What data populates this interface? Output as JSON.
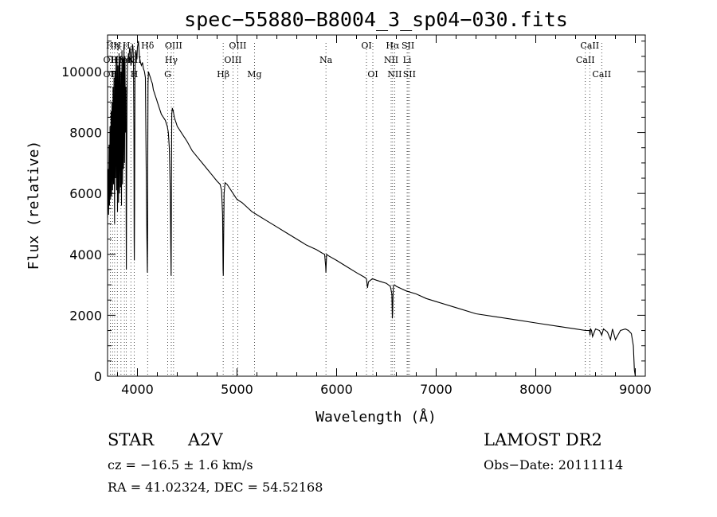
{
  "chart_data": {
    "type": "line",
    "title": "spec−55880−B8004_3_sp04−030.fits",
    "xlabel": "Wavelength (Å)",
    "ylabel": "Flux (relative)",
    "xlim": [
      3700,
      9100
    ],
    "ylim": [
      0,
      11200
    ],
    "xticks": [
      4000,
      5000,
      6000,
      7000,
      8000,
      9000
    ],
    "yticks": [
      0,
      2000,
      4000,
      6000,
      8000,
      10000
    ],
    "grid": false,
    "series": [
      {
        "x": [
          3700,
          3705,
          3710,
          3715,
          3720,
          3725,
          3730,
          3735,
          3740,
          3745,
          3750,
          3755,
          3760,
          3765,
          3770,
          3775,
          3780,
          3785,
          3790,
          3795,
          3800,
          3805,
          3810,
          3815,
          3820,
          3825,
          3830,
          3835,
          3840,
          3845,
          3850,
          3855,
          3860,
          3865,
          3870,
          3875,
          3880,
          3885,
          3887,
          3889,
          3891,
          3895,
          3900,
          3905,
          3910,
          3915,
          3920,
          3925,
          3930,
          3935,
          3940,
          3945,
          3950,
          3955,
          3960,
          3965,
          3967,
          3969,
          3971,
          3975,
          3980,
          3985,
          3990,
          3995,
          4000,
          4010,
          4020,
          4030,
          4040,
          4050,
          4060,
          4070,
          4080,
          4090,
          4095,
          4100,
          4102,
          4104,
          4106,
          4110,
          4120,
          4130,
          4140,
          4150,
          4160,
          4170,
          4180,
          4190,
          4200,
          4220,
          4240,
          4260,
          4280,
          4300,
          4310,
          4320,
          4330,
          4335,
          4338,
          4340,
          4342,
          4345,
          4350,
          4360,
          4370,
          4380,
          4390,
          4400,
          4420,
          4440,
          4460,
          4480,
          4500,
          4550,
          4600,
          4650,
          4700,
          4750,
          4800,
          4830,
          4845,
          4855,
          4860,
          4862,
          4865,
          4870,
          4880,
          4900,
          4950,
          5000,
          5050,
          5100,
          5150,
          5200,
          5300,
          5400,
          5500,
          5600,
          5700,
          5800,
          5850,
          5880,
          5890,
          5893,
          5896,
          5900,
          5920,
          6000,
          6100,
          6200,
          6280,
          6300,
          6310,
          6320,
          6360,
          6400,
          6450,
          6500,
          6540,
          6555,
          6560,
          6563,
          6566,
          6570,
          6580,
          6600,
          6700,
          6800,
          6900,
          7000,
          7200,
          7400,
          7600,
          7800,
          8000,
          8200,
          8400,
          8500,
          8540,
          8545,
          8550,
          8560,
          8570,
          8600,
          8640,
          8662,
          8680,
          8720,
          8750,
          8770,
          8800,
          8850,
          8900,
          8930,
          8960,
          8980,
          8990,
          9000
        ],
        "y": [
          5200,
          6800,
          5300,
          7600,
          5600,
          8200,
          5800,
          8700,
          5900,
          9000,
          6100,
          9500,
          6300,
          9800,
          5000,
          10000,
          6500,
          10300,
          6100,
          10500,
          5400,
          10200,
          5700,
          10600,
          6000,
          10300,
          6200,
          10000,
          5600,
          10700,
          6300,
          10400,
          6800,
          10900,
          7000,
          10500,
          8000,
          9500,
          5000,
          3500,
          6000,
          9000,
          10300,
          10400,
          10600,
          10500,
          10700,
          10800,
          10500,
          10200,
          10300,
          10600,
          10900,
          10800,
          10400,
          8000,
          4500,
          3800,
          5500,
          9800,
          10600,
          10700,
          10500,
          10400,
          10800,
          11000,
          10500,
          10300,
          10200,
          10300,
          10100,
          10000,
          9800,
          6000,
          4500,
          3400,
          4800,
          7500,
          9600,
          10000,
          9900,
          9800,
          9700,
          9600,
          9400,
          9300,
          9200,
          9100,
          9000,
          8800,
          8600,
          8500,
          8400,
          8200,
          8000,
          7500,
          6000,
          4200,
          3300,
          4500,
          7000,
          8600,
          8800,
          8700,
          8500,
          8400,
          8300,
          8200,
          8100,
          8000,
          7900,
          7800,
          7700,
          7400,
          7200,
          7000,
          6800,
          6600,
          6400,
          6300,
          6100,
          5300,
          3500,
          3300,
          4200,
          6000,
          6350,
          6300,
          6050,
          5800,
          5700,
          5550,
          5400,
          5300,
          5100,
          4900,
          4700,
          4500,
          4300,
          4150,
          4050,
          4000,
          3600,
          3400,
          3700,
          4000,
          3950,
          3800,
          3600,
          3400,
          3250,
          3200,
          2900,
          3100,
          3200,
          3150,
          3100,
          3050,
          2950,
          2700,
          1900,
          2100,
          2600,
          2950,
          3000,
          2950,
          2800,
          2700,
          2550,
          2450,
          2250,
          2050,
          1950,
          1850,
          1750,
          1650,
          1550,
          1500,
          1500,
          1350,
          1550,
          1500,
          1300,
          1550,
          1500,
          1350,
          1550,
          1450,
          1200,
          1550,
          1200,
          1500,
          1550,
          1500,
          1400,
          1000,
          200,
          0
        ]
      }
    ],
    "line_labels": [
      {
        "x": 3727,
        "row": 1,
        "text": "OII"
      },
      {
        "x": 3727,
        "row": 2,
        "text": "OII"
      },
      {
        "x": 3750,
        "row": 0,
        "text": "Hη"
      },
      {
        "x": 3771,
        "row": 1,
        "text": "H"
      },
      {
        "x": 3798,
        "row": 0,
        "text": "H"
      },
      {
        "x": 3798,
        "row": 1,
        "text": "Hθ"
      },
      {
        "x": 3798,
        "row": 2,
        "text": "Hε"
      },
      {
        "x": 3835,
        "row": 1,
        "text": "He"
      },
      {
        "x": 3869,
        "row": 1,
        "text": "Ne"
      },
      {
        "x": 3889,
        "row": 0,
        "text": "H"
      },
      {
        "x": 3934,
        "row": 1,
        "text": "K"
      },
      {
        "x": 3968,
        "row": 2,
        "text": "H"
      },
      {
        "x": 3968,
        "row": 1,
        "text": "NII"
      },
      {
        "x": 4102,
        "row": 0,
        "text": "Hδ"
      },
      {
        "x": 4363,
        "row": 0,
        "text": "OIII"
      },
      {
        "x": 4340,
        "row": 1,
        "text": "Hγ"
      },
      {
        "x": 4304,
        "row": 2,
        "text": "G"
      },
      {
        "x": 4861,
        "row": 2,
        "text": "Hβ"
      },
      {
        "x": 4959,
        "row": 1,
        "text": "OIII"
      },
      {
        "x": 5007,
        "row": 0,
        "text": "OIII"
      },
      {
        "x": 5175,
        "row": 2,
        "text": "Mg"
      },
      {
        "x": 5893,
        "row": 1,
        "text": "Na"
      },
      {
        "x": 6300,
        "row": 0,
        "text": "OI"
      },
      {
        "x": 6364,
        "row": 2,
        "text": "OI"
      },
      {
        "x": 6548,
        "row": 1,
        "text": "NII"
      },
      {
        "x": 6563,
        "row": 0,
        "text": "Hα"
      },
      {
        "x": 6583,
        "row": 2,
        "text": "NII"
      },
      {
        "x": 6708,
        "row": 1,
        "text": "Li"
      },
      {
        "x": 6717,
        "row": 0,
        "text": "SII"
      },
      {
        "x": 6731,
        "row": 2,
        "text": "SII"
      },
      {
        "x": 8498,
        "row": 1,
        "text": "CaII"
      },
      {
        "x": 8542,
        "row": 0,
        "text": "CaII"
      },
      {
        "x": 8662,
        "row": 2,
        "text": "CaII"
      }
    ],
    "marker_lines": [
      3727,
      3750,
      3771,
      3798,
      3835,
      3869,
      3889,
      3934,
      3968,
      4102,
      4304,
      4340,
      4363,
      4861,
      4959,
      5007,
      5175,
      5893,
      6300,
      6364,
      6548,
      6563,
      6583,
      6708,
      6717,
      6731,
      8498,
      8542,
      8662
    ]
  },
  "info": {
    "object_type": "STAR",
    "subclass": "A2V",
    "survey": "LAMOST  DR2",
    "redshift": "cz = −16.5 ± 1.6 km/s",
    "obs_date": "Obs−Date: 20111114",
    "coords": "RA =  41.02324, DEC =  54.52168"
  }
}
